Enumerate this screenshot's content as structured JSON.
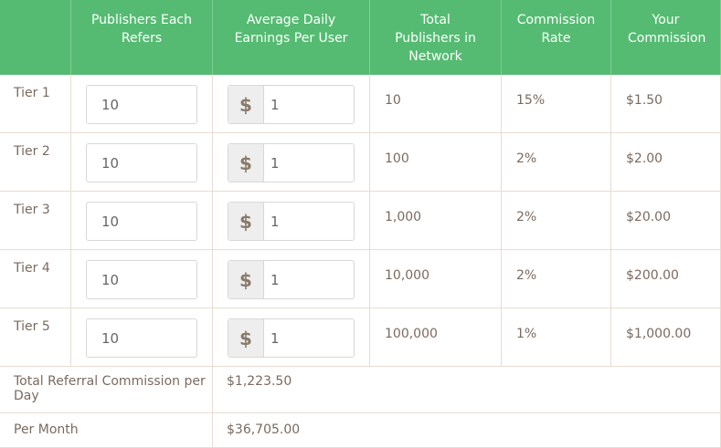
{
  "headers": [
    "",
    "Publishers Each Refers",
    "Average Daily Earnings Per User",
    "Total Publishers in Network",
    "Commission Rate",
    "Your Commission"
  ],
  "currency_symbol": "$",
  "rows": [
    {
      "tier": "Tier 1",
      "refers": "10",
      "earnings": "1",
      "total": "10",
      "rate": "15%",
      "commission": "$1.50"
    },
    {
      "tier": "Tier 2",
      "refers": "10",
      "earnings": "1",
      "total": "100",
      "rate": "2%",
      "commission": "$2.00"
    },
    {
      "tier": "Tier 3",
      "refers": "10",
      "earnings": "1",
      "total": "1,000",
      "rate": "2%",
      "commission": "$20.00"
    },
    {
      "tier": "Tier 4",
      "refers": "10",
      "earnings": "1",
      "total": "10,000",
      "rate": "2%",
      "commission": "$200.00"
    },
    {
      "tier": "Tier 5",
      "refers": "10",
      "earnings": "1",
      "total": "100,000",
      "rate": "1%",
      "commission": "$1,000.00"
    }
  ],
  "summary": {
    "daily_label": "Total Referral Commission per Day",
    "daily_value": "$1,223.50",
    "monthly_label": "Per Month",
    "monthly_value": "$36,705.00"
  },
  "colors": {
    "header_bg": "#55bb72",
    "header_text": "#ffffff",
    "body_text": "#7a6a5f",
    "border": "#e8dcd0"
  }
}
